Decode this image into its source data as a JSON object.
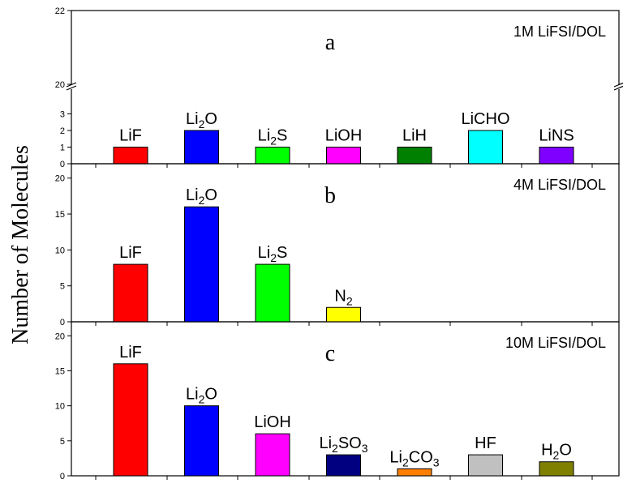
{
  "chart_data": {
    "type": "bar",
    "ylabel": "Number of Molecules",
    "panels": [
      {
        "id": "a",
        "letter": "a",
        "title": "1M LiFSI/DOL",
        "broken_axis": true,
        "ylim_lower": [
          0,
          3.9
        ],
        "ylim_upper": [
          20,
          22
        ],
        "yticks_lower": [
          0,
          1,
          2,
          3
        ],
        "yticks_upper": [
          20,
          22
        ],
        "categories": [
          {
            "label": "LiF",
            "sub": "",
            "tail": "",
            "value": 1,
            "color": "#ff0000"
          },
          {
            "label": "Li",
            "sub": "2",
            "tail": "O",
            "value": 2,
            "color": "#0000ff"
          },
          {
            "label": "Li",
            "sub": "2",
            "tail": "S",
            "value": 1,
            "color": "#00ff00"
          },
          {
            "label": "LiOH",
            "sub": "",
            "tail": "",
            "value": 1,
            "color": "#ff00ff"
          },
          {
            "label": "LiH",
            "sub": "",
            "tail": "",
            "value": 1,
            "color": "#008000"
          },
          {
            "label": "LiCHO",
            "sub": "",
            "tail": "",
            "value": 2,
            "color": "#00ffff"
          },
          {
            "label": "LiNS",
            "sub": "",
            "tail": "",
            "value": 1,
            "color": "#8000ff"
          }
        ]
      },
      {
        "id": "b",
        "letter": "b",
        "title": "4M LiFSI/DOL",
        "broken_axis": false,
        "ylim": [
          0,
          22
        ],
        "yticks": [
          0,
          5,
          10,
          15,
          20
        ],
        "categories": [
          {
            "label": "LiF",
            "sub": "",
            "tail": "",
            "value": 8,
            "color": "#ff0000"
          },
          {
            "label": "Li",
            "sub": "2",
            "tail": "O",
            "value": 16,
            "color": "#0000ff"
          },
          {
            "label": "Li",
            "sub": "2",
            "tail": "S",
            "value": 8,
            "color": "#00ff00"
          },
          {
            "label": "N",
            "sub": "2",
            "tail": "",
            "value": 2,
            "color": "#ffff00"
          }
        ]
      },
      {
        "id": "c",
        "letter": "c",
        "title": "10M LiFSI/DOL",
        "broken_axis": false,
        "ylim": [
          0,
          22
        ],
        "yticks": [
          0,
          5,
          10,
          15,
          20
        ],
        "categories": [
          {
            "label": "LiF",
            "sub": "",
            "tail": "",
            "value": 16,
            "color": "#ff0000"
          },
          {
            "label": "Li",
            "sub": "2",
            "tail": "O",
            "value": 10,
            "color": "#0000ff"
          },
          {
            "label": "LiOH",
            "sub": "",
            "tail": "",
            "value": 6,
            "color": "#ff00ff"
          },
          {
            "label": "Li",
            "sub": "2",
            "tail": "SO",
            "sub2": "3",
            "value": 3,
            "color": "#000080"
          },
          {
            "label": "Li",
            "sub": "2",
            "tail": "CO",
            "sub2": "3",
            "value": 1,
            "color": "#ff8000"
          },
          {
            "label": "HF",
            "sub": "",
            "tail": "",
            "value": 3,
            "color": "#c0c0c0"
          },
          {
            "label": "H",
            "sub": "2",
            "tail": "O",
            "value": 2,
            "color": "#808000"
          }
        ]
      }
    ]
  }
}
